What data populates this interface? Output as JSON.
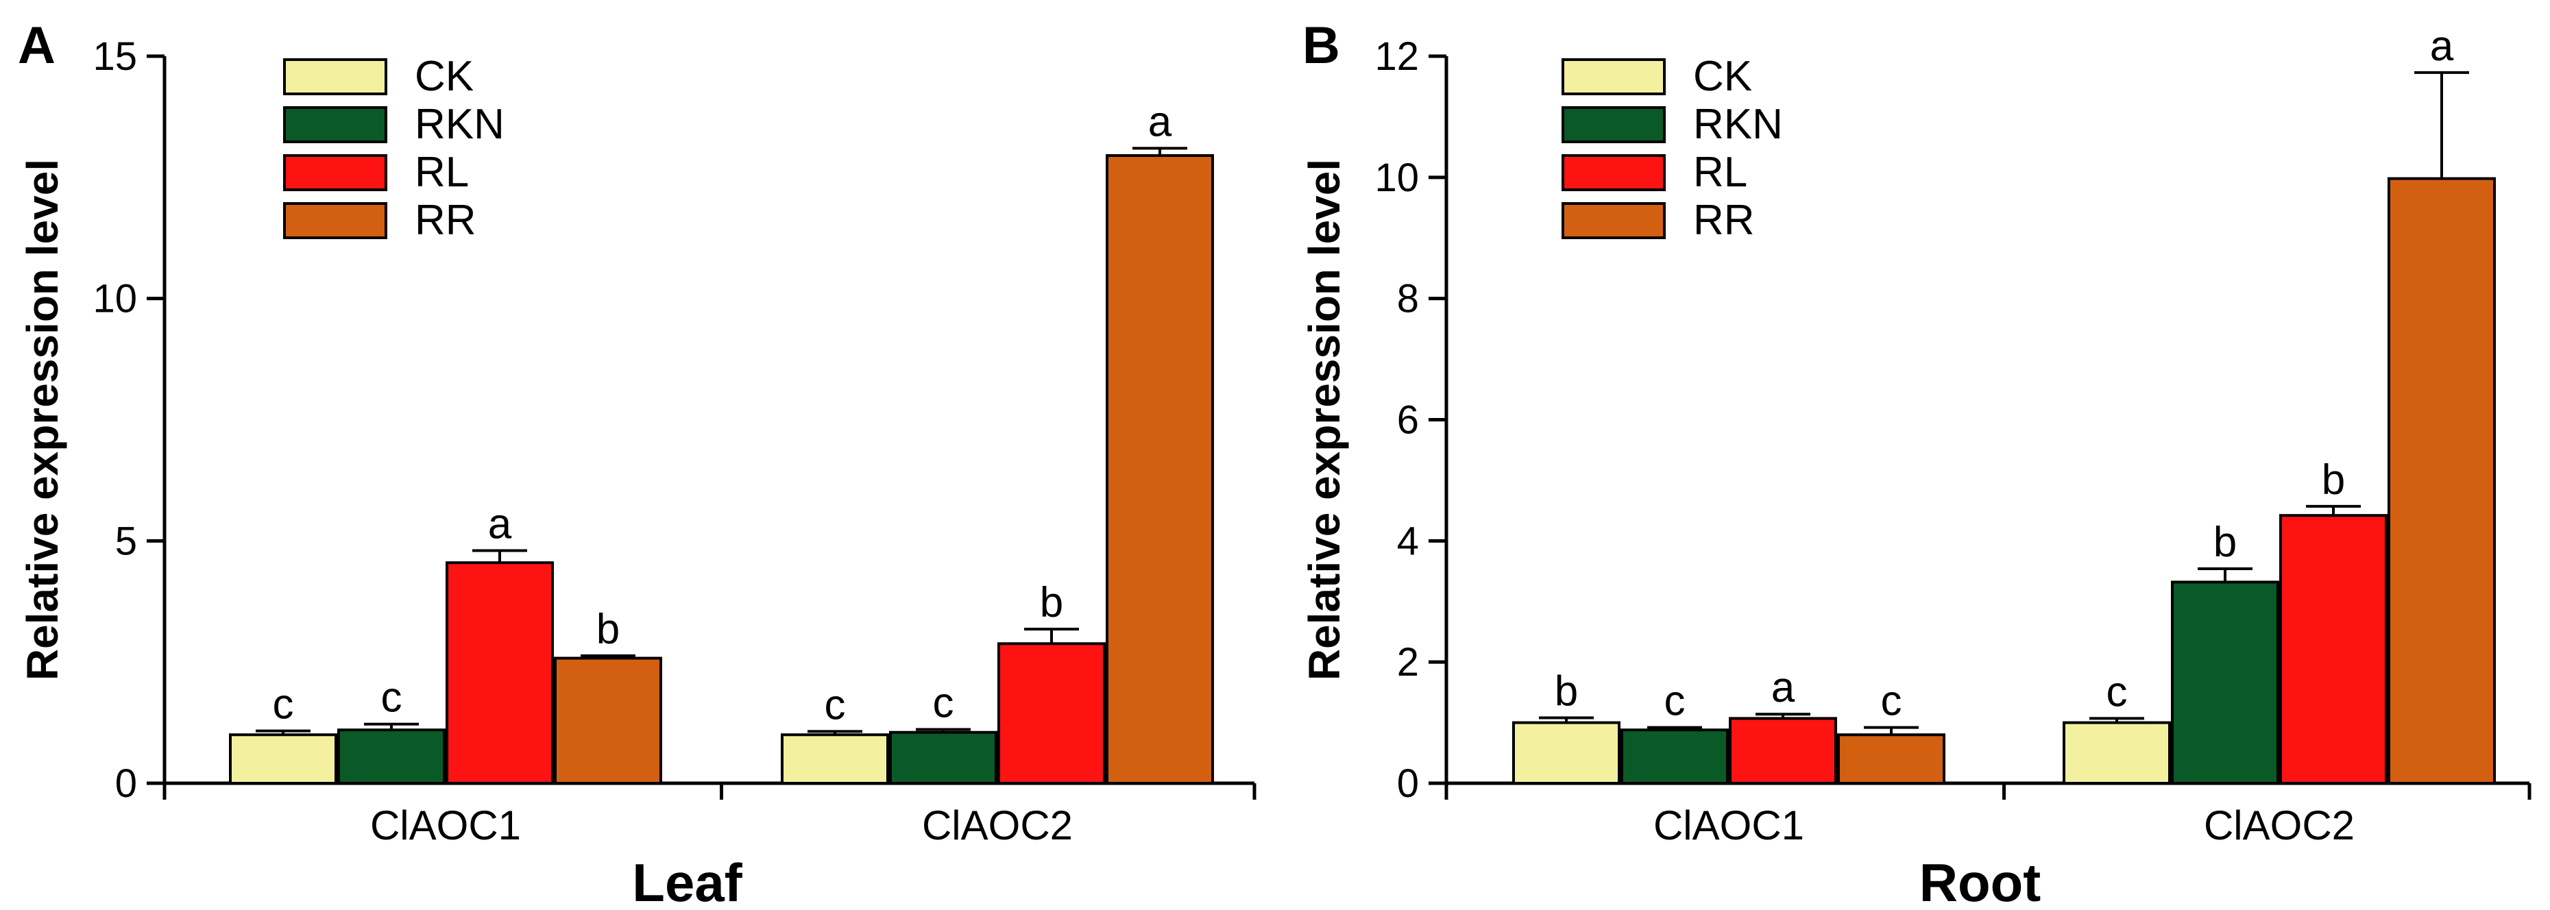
{
  "figure": {
    "panels_meta": [
      "A",
      "B"
    ]
  },
  "legend_items": [
    "CK",
    "RKN",
    "RL",
    "RR"
  ],
  "colors": {
    "CK": "#f3f0a0",
    "RKN": "#0a5a27",
    "RL": "#fd1312",
    "RR": "#d36011",
    "axis": "#000000"
  },
  "chart_data": [
    {
      "type": "bar",
      "panel_label": "A",
      "title": "",
      "xlabel": "Leaf",
      "ylabel": "Relative expression level",
      "categories": [
        "ClAOC1",
        "ClAOC2"
      ],
      "ylim": [
        0,
        15
      ],
      "yticks": [
        0,
        5,
        10,
        15
      ],
      "legend": "top-left",
      "series": [
        {
          "name": "CK",
          "values": [
            1.0,
            1.0
          ],
          "errors": [
            0.08,
            0.07
          ],
          "letters": [
            "c",
            "c"
          ]
        },
        {
          "name": "RKN",
          "values": [
            1.1,
            1.05
          ],
          "errors": [
            0.12,
            0.06
          ],
          "letters": [
            "c",
            "c"
          ]
        },
        {
          "name": "RL",
          "values": [
            4.55,
            2.88
          ],
          "errors": [
            0.25,
            0.3
          ],
          "letters": [
            "a",
            "b"
          ]
        },
        {
          "name": "RR",
          "values": [
            2.58,
            12.95
          ],
          "errors": [
            0.05,
            0.15
          ],
          "letters": [
            "b",
            "a"
          ]
        }
      ]
    },
    {
      "type": "bar",
      "panel_label": "B",
      "title": "",
      "xlabel": "Root",
      "ylabel": "Relative expression level",
      "categories": [
        "ClAOC1",
        "ClAOC2"
      ],
      "ylim": [
        0,
        12
      ],
      "yticks": [
        0,
        2,
        4,
        6,
        8,
        10,
        12
      ],
      "legend": "top-left",
      "series": [
        {
          "name": "CK",
          "values": [
            1.0,
            1.0
          ],
          "errors": [
            0.08,
            0.07
          ],
          "letters": [
            "b",
            "c"
          ]
        },
        {
          "name": "RKN",
          "values": [
            0.88,
            3.32
          ],
          "errors": [
            0.04,
            0.22
          ],
          "letters": [
            "c",
            "b"
          ]
        },
        {
          "name": "RL",
          "values": [
            1.07,
            4.42
          ],
          "errors": [
            0.07,
            0.15
          ],
          "letters": [
            "a",
            "b"
          ]
        },
        {
          "name": "RR",
          "values": [
            0.8,
            9.98
          ],
          "errors": [
            0.12,
            1.75
          ],
          "letters": [
            "c",
            "a"
          ]
        }
      ]
    }
  ]
}
